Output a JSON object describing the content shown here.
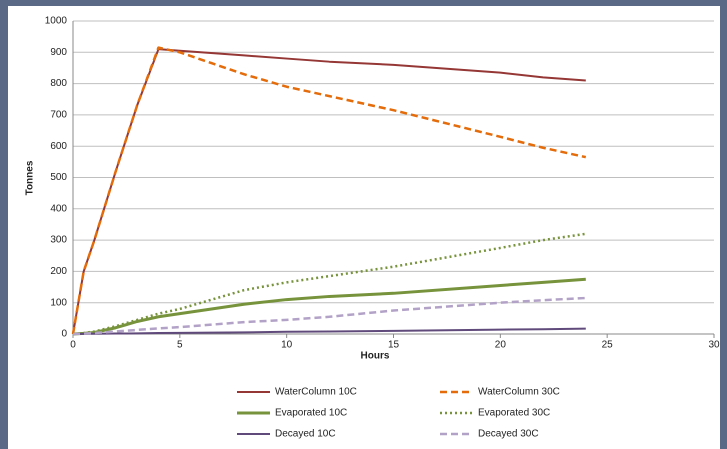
{
  "chart_data": {
    "type": "line",
    "x_label": "Hours",
    "y_label": "Tonnes",
    "x": [
      0,
      0.5,
      1,
      2,
      3,
      4,
      5,
      8,
      10,
      12,
      15,
      20,
      22,
      24
    ],
    "series": [
      {
        "name": "WaterColumn 10C",
        "color": "#953735",
        "dash": "solid",
        "width": 2,
        "values": [
          0,
          200,
          300,
          520,
          730,
          910,
          905,
          890,
          880,
          870,
          860,
          835,
          820,
          810
        ]
      },
      {
        "name": "WaterColumn 30C",
        "color": "#e46c0a",
        "dash": "dashed",
        "width": 2.5,
        "values": [
          0,
          200,
          300,
          520,
          730,
          915,
          900,
          830,
          790,
          760,
          715,
          630,
          595,
          565
        ]
      },
      {
        "name": "Evaporated 10C",
        "color": "#77933c",
        "dash": "solid",
        "width": 3,
        "values": [
          0,
          2,
          5,
          20,
          40,
          55,
          65,
          95,
          110,
          120,
          130,
          155,
          165,
          175
        ]
      },
      {
        "name": "Evaporated 30C",
        "color": "#77933c",
        "dash": "dotted",
        "width": 2.5,
        "values": [
          0,
          3,
          8,
          25,
          45,
          65,
          80,
          140,
          165,
          185,
          215,
          275,
          300,
          320
        ]
      },
      {
        "name": "Decayed 10C",
        "color": "#604a7b",
        "dash": "solid",
        "width": 2,
        "values": [
          0,
          0.3,
          0.6,
          1.5,
          2,
          3,
          3.5,
          5,
          7,
          8,
          10,
          14,
          15,
          17
        ]
      },
      {
        "name": "Decayed 30C",
        "color": "#b3a2c7",
        "dash": "dashed",
        "width": 2.5,
        "values": [
          0,
          1,
          3,
          8,
          13,
          18,
          22,
          38,
          45,
          55,
          75,
          100,
          108,
          115
        ]
      }
    ],
    "xlim": [
      0,
      30
    ],
    "xticks": [
      0,
      5,
      10,
      15,
      20,
      25,
      30
    ],
    "ylim": [
      0,
      1000
    ],
    "yticks": [
      0,
      100,
      200,
      300,
      400,
      500,
      600,
      700,
      800,
      900,
      1000
    ],
    "grid": true,
    "legend": "bottom"
  }
}
